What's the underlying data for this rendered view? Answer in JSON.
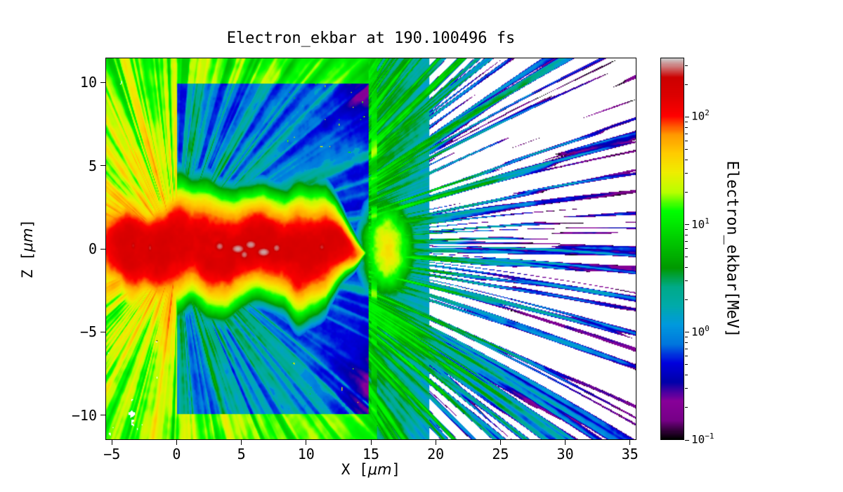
{
  "figure": {
    "background": "#ffffff",
    "frame_color": "#000000"
  },
  "chart_data": {
    "type": "heatmap",
    "title": "Electron_ekbar at 190.100496 fs",
    "time_fs": 190.100496,
    "xlabel": "X [μm]",
    "ylabel": "Z [μm]",
    "xlabel_parts": [
      "X [",
      "μm",
      "]"
    ],
    "ylabel_parts": [
      "Z [",
      "μm",
      "]"
    ],
    "x_range": [
      -5.5,
      35.5
    ],
    "z_range": [
      -11.5,
      11.5
    ],
    "x_ticks": [
      {
        "value": -5,
        "label": "−5"
      },
      {
        "value": 0,
        "label": "0"
      },
      {
        "value": 5,
        "label": "5"
      },
      {
        "value": 10,
        "label": "10"
      },
      {
        "value": 15,
        "label": "15"
      },
      {
        "value": 20,
        "label": "20"
      },
      {
        "value": 25,
        "label": "25"
      },
      {
        "value": 30,
        "label": "30"
      },
      {
        "value": 35,
        "label": "35"
      }
    ],
    "z_ticks": [
      {
        "value": 10,
        "label": "10"
      },
      {
        "value": 5,
        "label": "5"
      },
      {
        "value": 0,
        "label": "0"
      },
      {
        "value": -5,
        "label": "−5"
      },
      {
        "value": -10,
        "label": "−10"
      }
    ],
    "grid": false,
    "colormap": "nipy_spectral",
    "color_scale": "log",
    "color_log_range": [
      -1,
      2.55
    ],
    "value_range_mev": [
      0.1,
      355
    ],
    "no_data_color": "#ffffff",
    "colorbar": {
      "label": "Electron_ekbar[MeV]",
      "ticks": [
        {
          "value": 100,
          "mantissa": "10",
          "exponent": "2"
        },
        {
          "value": 10,
          "mantissa": "10",
          "exponent": "1"
        },
        {
          "value": 1,
          "mantissa": "10",
          "exponent": "0"
        },
        {
          "value": 0.1,
          "mantissa": "10",
          "exponent": "−1"
        }
      ]
    },
    "features": [
      {
        "name": "target-box",
        "x_extent_um": [
          0,
          15
        ],
        "z_extent_um": [
          -10,
          10
        ],
        "typical_value_mev": [
          0.1,
          0.8
        ],
        "appearance": "sharp-edged dark blue slab with purple shading in right corners and right edge"
      },
      {
        "name": "hot-channel",
        "x_extent_um": [
          -5.5,
          14.7
        ],
        "z_extent_um": [
          -2.5,
          2.5
        ],
        "typical_value_mev": [
          80,
          330
        ],
        "appearance": "blobby red channel along z≈0 tapering to a tip near x≈14.7, white-gray hot cores near x≈3–8"
      },
      {
        "name": "left-burst",
        "x_extent_um": [
          -5.5,
          0
        ],
        "z_extent_um": [
          -11.5,
          11.5
        ],
        "typical_value_mev": [
          5,
          80
        ],
        "appearance": "yellow/orange radial streaks fading to green at large radius, small white gaps bottom-left"
      },
      {
        "name": "forward-filaments",
        "x_extent_um": [
          15,
          24
        ],
        "z_extent_um": [
          -11.5,
          11.5
        ],
        "typical_value_mev": [
          1,
          12
        ],
        "appearance": "dense green/teal radial filaments thinning with distance"
      },
      {
        "name": "sparse-ejecta",
        "x_extent_um": [
          24,
          35.5
        ],
        "z_extent_um": [
          -11.5,
          11.5
        ],
        "typical_value_mev": [
          0.1,
          2
        ],
        "appearance": "sparse elongated cyan/blue/purple specks on white background"
      },
      {
        "name": "exit-glow",
        "x_extent_um": [
          15,
          18
        ],
        "z_extent_um": [
          -2,
          2
        ],
        "typical_value_mev": [
          15,
          45
        ],
        "appearance": "orange/yellow glow just outside right face of target on axis"
      }
    ]
  }
}
